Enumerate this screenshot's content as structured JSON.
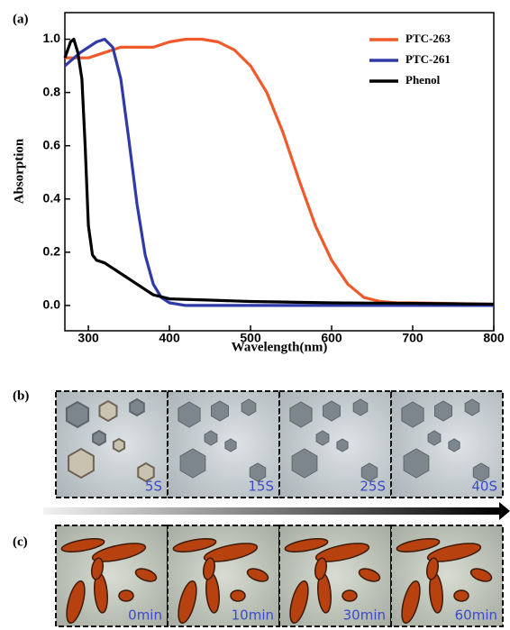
{
  "chart_data": {
    "type": "line",
    "panel_label": "(a)",
    "x_label": "Wavelength(nm)",
    "y_label": "Absorption",
    "xlim": [
      271,
      800
    ],
    "ylim": [
      -0.095,
      1.1
    ],
    "xticks": [
      300,
      400,
      500,
      600,
      700,
      800
    ],
    "yticks": [
      {
        "value": 0,
        "label": "0.0"
      },
      {
        "value": 0.2,
        "label": "0.2"
      },
      {
        "value": 0.4,
        "label": "0.4"
      },
      {
        "value": 0.6,
        "label": "0.6"
      },
      {
        "value": 0.8,
        "label": "0.8"
      },
      {
        "value": 1,
        "label": "1.0"
      }
    ],
    "legend": "upper right",
    "series": [
      {
        "name": "PTC-263",
        "color": "#f05a2b",
        "x": [
          271,
          300,
          320,
          340,
          360,
          380,
          400,
          420,
          440,
          460,
          480,
          500,
          520,
          540,
          560,
          580,
          600,
          620,
          640,
          660,
          680,
          700,
          800
        ],
        "values": [
          0.93,
          0.93,
          0.95,
          0.97,
          0.97,
          0.97,
          0.99,
          1.0,
          1.0,
          0.99,
          0.96,
          0.9,
          0.8,
          0.65,
          0.47,
          0.3,
          0.17,
          0.08,
          0.03,
          0.015,
          0.01,
          0.01,
          0.005
        ]
      },
      {
        "name": "PTC-261",
        "color": "#2e3ba6",
        "x": [
          271,
          290,
          310,
          320,
          330,
          340,
          350,
          360,
          370,
          380,
          390,
          400,
          420,
          500,
          600,
          800
        ],
        "values": [
          0.9,
          0.95,
          0.99,
          1.0,
          0.97,
          0.85,
          0.62,
          0.38,
          0.19,
          0.08,
          0.03,
          0.01,
          0.0,
          0.0,
          0.0,
          0.0
        ]
      },
      {
        "name": "Phenol",
        "color": "#000000",
        "x": [
          271,
          278,
          282,
          287,
          292,
          296,
          300,
          305,
          310,
          320,
          340,
          360,
          380,
          400,
          450,
          500,
          600,
          700,
          800
        ],
        "values": [
          0.93,
          0.99,
          1.0,
          0.95,
          0.85,
          0.6,
          0.3,
          0.19,
          0.17,
          0.16,
          0.12,
          0.08,
          0.04,
          0.025,
          0.02,
          0.015,
          0.01,
          0.008,
          0.005
        ]
      }
    ]
  },
  "panels": {
    "b": {
      "label": "(b)",
      "frames": [
        "5S",
        "15S",
        "25S",
        "40S"
      ]
    },
    "c": {
      "label": "(c)",
      "frames": [
        "0min",
        "10min",
        "30min",
        "60min"
      ]
    }
  }
}
